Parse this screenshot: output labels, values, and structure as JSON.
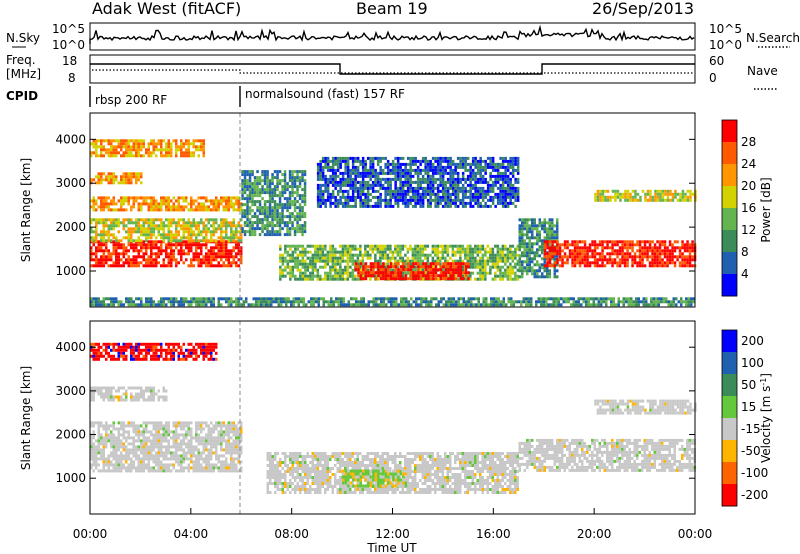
{
  "header": {
    "station": "Adak West (fitACF)",
    "beam": "Beam 19",
    "date": "26/Sep/2013"
  },
  "noise_panel": {
    "left_label": "N.Sky",
    "left_ticks": [
      "10^5",
      "10^0"
    ],
    "right_label": "N.Search",
    "right_ticks": [
      "10^5",
      "10^0"
    ]
  },
  "freq_panel": {
    "left_label_1": "Freq.",
    "left_label_2": "[MHz]",
    "left_ticks": [
      "18",
      "8"
    ],
    "right_label": "Nave",
    "right_ticks": [
      "60",
      "0"
    ]
  },
  "cpid_panel": {
    "label": "CPID",
    "mode_1": "rbsp 200 RF",
    "mode_2": "normalsound (fast) 157 RF"
  },
  "colors": {
    "power_scale": [
      "#0000ff",
      "#2060b0",
      "#3c8c5a",
      "#64b450",
      "#d2d200",
      "#ff9600",
      "#ff5a00",
      "#ff0000"
    ],
    "velocity_scale": [
      "#0000ff",
      "#2060b0",
      "#3c8c5a",
      "#64c83c",
      "#c8c8c8",
      "#ffb400",
      "#ff6400",
      "#ff0000"
    ],
    "ground_scatter": "#c8c8c8"
  },
  "chart_data": [
    {
      "type": "heatmap",
      "name": "power",
      "ylabel": "Slant Range [km]",
      "ylim": [
        180,
        4600
      ],
      "yticks": [
        "1000",
        "2000",
        "3000",
        "4000"
      ],
      "xlim": [
        0,
        24
      ],
      "colorbar_label": "Power [dB]",
      "colorbar_ticks": [
        "4",
        "8",
        "12",
        "16",
        "20",
        "24",
        "28"
      ],
      "regions": [
        {
          "t0": 0.0,
          "t1": 6.0,
          "r0": 1100,
          "r1": 1700,
          "level": 28
        },
        {
          "t0": 0.0,
          "t1": 6.0,
          "r0": 1700,
          "r1": 2200,
          "level": 16
        },
        {
          "t0": 0.0,
          "t1": 6.0,
          "r0": 2400,
          "r1": 2700,
          "level": 20
        },
        {
          "t0": 0.0,
          "t1": 2.0,
          "r0": 3000,
          "r1": 3250,
          "level": 20
        },
        {
          "t0": 0.0,
          "t1": 4.5,
          "r0": 3650,
          "r1": 4000,
          "level": 20
        },
        {
          "t0": 6.0,
          "t1": 8.5,
          "r0": 1800,
          "r1": 3300,
          "level": 8
        },
        {
          "t0": 7.5,
          "t1": 17.0,
          "r0": 800,
          "r1": 1600,
          "level": 12
        },
        {
          "t0": 10.5,
          "t1": 15.0,
          "r0": 850,
          "r1": 1200,
          "level": 28
        },
        {
          "t0": 9.0,
          "t1": 17.0,
          "r0": 2500,
          "r1": 3600,
          "level": 4
        },
        {
          "t0": 17.0,
          "t1": 18.5,
          "r0": 900,
          "r1": 2200,
          "level": 8
        },
        {
          "t0": 18.0,
          "t1": 24.0,
          "r0": 1100,
          "r1": 1700,
          "level": 28
        },
        {
          "t0": 20.0,
          "t1": 24.0,
          "r0": 2600,
          "r1": 2850,
          "level": 16
        },
        {
          "t0": 0.0,
          "t1": 24.0,
          "r0": 200,
          "r1": 400,
          "level": 8
        }
      ]
    },
    {
      "type": "heatmap",
      "name": "velocity",
      "ylabel": "Slant Range [km]",
      "ylim": [
        180,
        4600
      ],
      "yticks": [
        "1000",
        "2000",
        "3000",
        "4000"
      ],
      "xlim": [
        0,
        24
      ],
      "xlabel": "Time UT",
      "xticks": [
        "00:00",
        "04:00",
        "08:00",
        "12:00",
        "16:00",
        "20:00",
        "00:00"
      ],
      "colorbar_label": "Velocity [m s",
      "colorbar_unit_sup": "-1",
      "colorbar_unit_end": "]",
      "colorbar_ticks": [
        "200",
        "100",
        "50",
        "15",
        "-15",
        "-50",
        "-100",
        "-200"
      ],
      "regions": [
        {
          "t0": 0.0,
          "t1": 6.0,
          "r0": 1200,
          "r1": 2300,
          "v": 0
        },
        {
          "t0": 0.0,
          "t1": 3.0,
          "r0": 2800,
          "r1": 3100,
          "v": 0
        },
        {
          "t0": 0.0,
          "t1": 5.0,
          "r0": 3700,
          "r1": 4100,
          "v": -200
        },
        {
          "t0": 7.0,
          "t1": 17.0,
          "r0": 700,
          "r1": 1600,
          "v": 0
        },
        {
          "t0": 10.0,
          "t1": 12.5,
          "r0": 800,
          "r1": 1200,
          "v": 30
        },
        {
          "t0": 17.0,
          "t1": 24.0,
          "r0": 1200,
          "r1": 1900,
          "v": 0
        },
        {
          "t0": 20.0,
          "t1": 24.0,
          "r0": 2500,
          "r1": 2800,
          "v": 0
        }
      ]
    }
  ]
}
